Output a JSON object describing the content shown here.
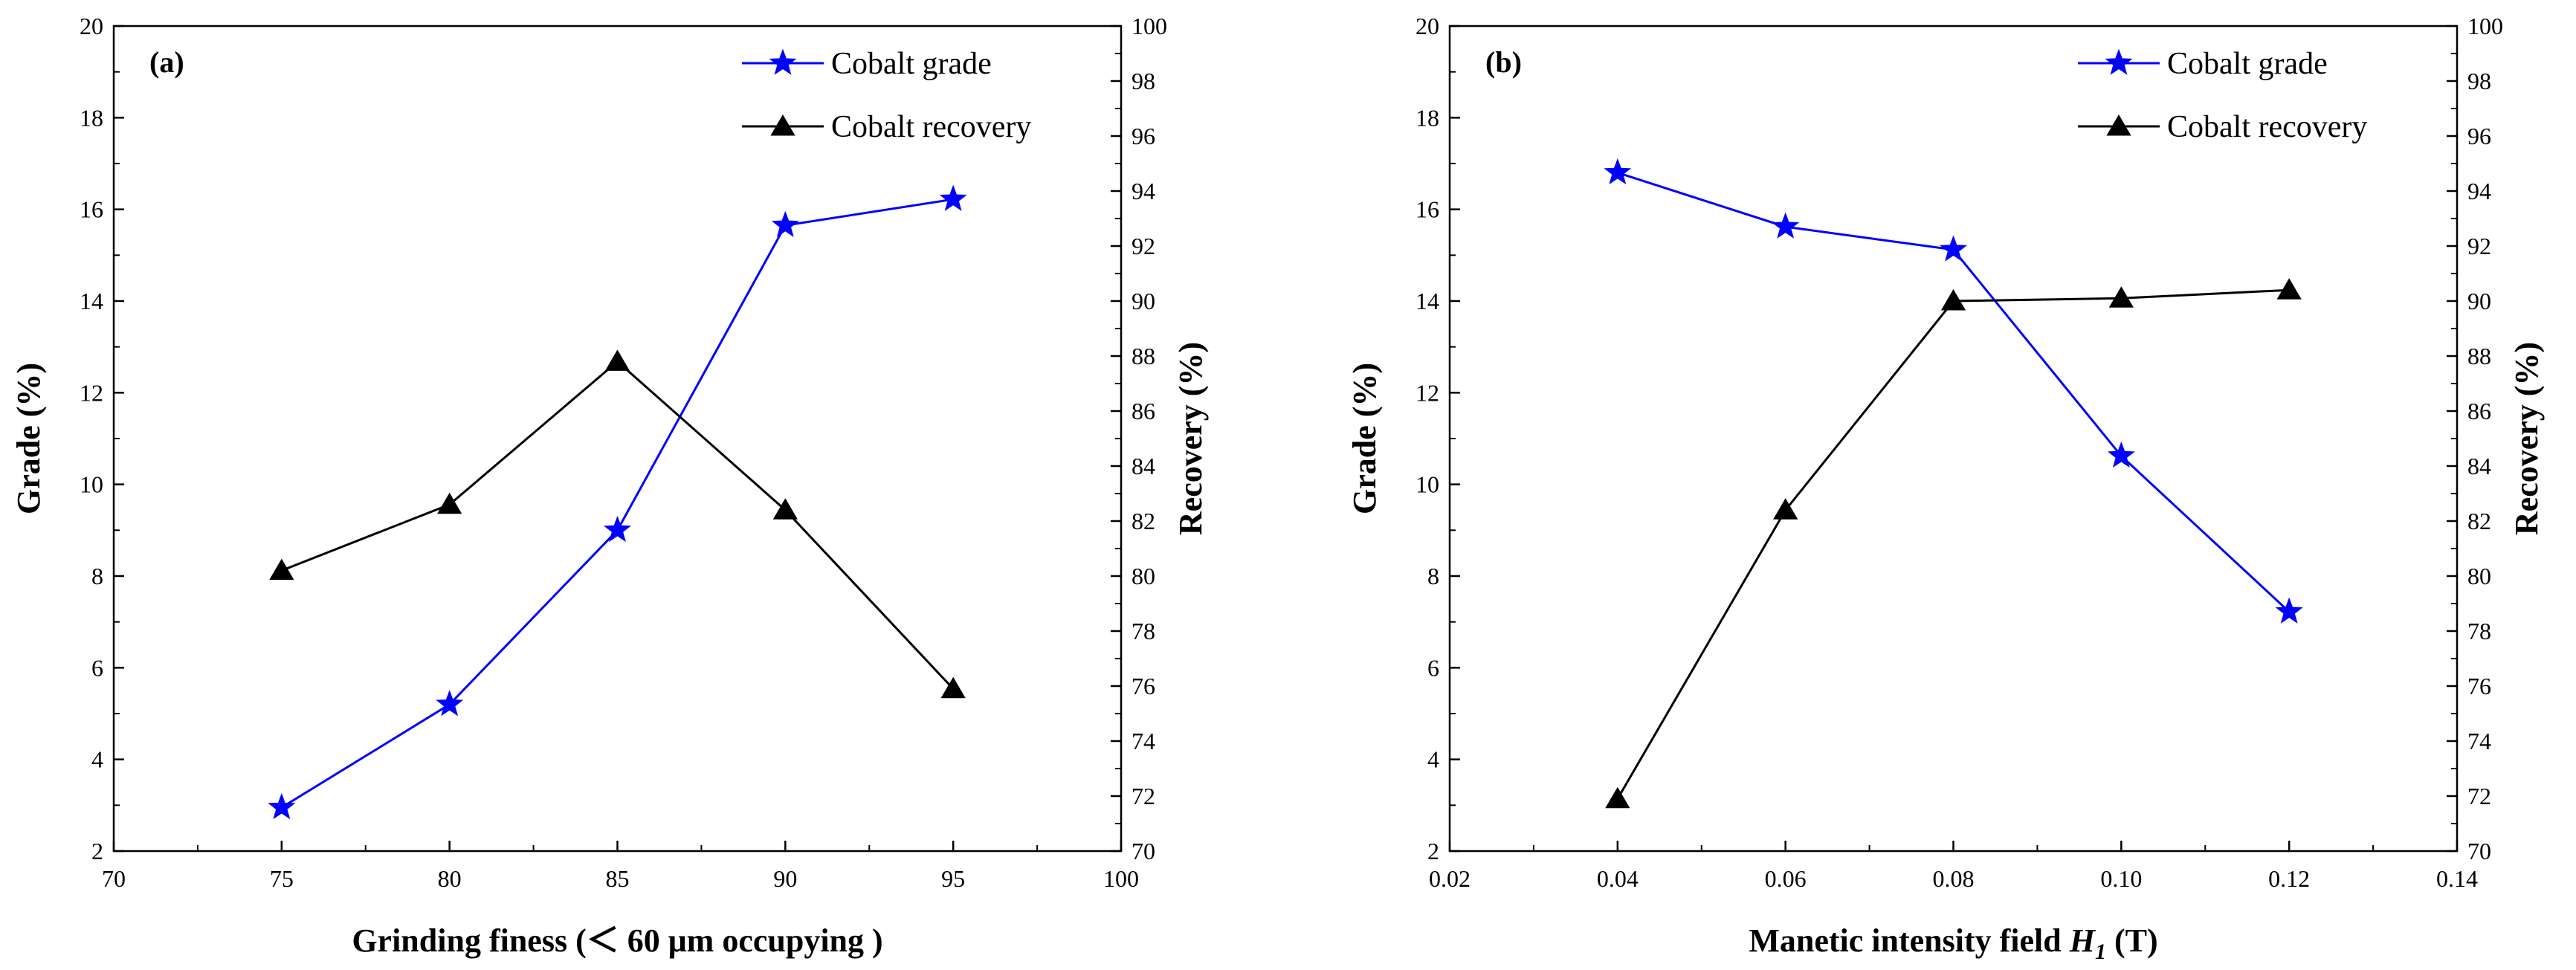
{
  "chart_data": [
    {
      "type": "line",
      "panel_label": "(a)",
      "xlabel": "Grinding finess (＜ 60 μm occupying )",
      "ylabel_left": "Grade (%)",
      "ylabel_right": "Recovery (%)",
      "xlim": [
        70,
        100
      ],
      "ylim_left": [
        2,
        20
      ],
      "ylim_right": [
        70,
        100
      ],
      "x_ticks": [
        "70",
        "75",
        "80",
        "85",
        "90",
        "95",
        "100"
      ],
      "y_left_ticks": [
        "2",
        "4",
        "6",
        "8",
        "10",
        "12",
        "14",
        "16",
        "18",
        "20"
      ],
      "y_right_ticks": [
        "70",
        "72",
        "74",
        "76",
        "78",
        "80",
        "82",
        "84",
        "86",
        "88",
        "90",
        "92",
        "94",
        "96",
        "98",
        "100"
      ],
      "legend_position": "top-right",
      "x": [
        75,
        80,
        85,
        90,
        95
      ],
      "series": [
        {
          "name": "Cobalt grade",
          "axis": "left",
          "marker": "star",
          "color": "#0000ff",
          "values": [
            2.95,
            5.2,
            9.0,
            15.65,
            16.22
          ]
        },
        {
          "name": "Cobalt recovery",
          "axis": "right",
          "marker": "triangle",
          "color": "#000000",
          "values": [
            80.2,
            82.6,
            87.8,
            82.4,
            75.9
          ]
        }
      ]
    },
    {
      "type": "line",
      "panel_label": "(b)",
      "xlabel_parts": [
        "Manetic intensity field ",
        "H",
        "1",
        " (T)"
      ],
      "ylabel_left": "Grade (%)",
      "ylabel_right": "Recovery (%)",
      "xlim": [
        0.02,
        0.14
      ],
      "ylim_left": [
        2,
        20
      ],
      "ylim_right": [
        70,
        100
      ],
      "x_ticks": [
        "0.02",
        "0.04",
        "0.06",
        "0.08",
        "0.10",
        "0.12",
        "0.14"
      ],
      "y_left_ticks": [
        "2",
        "4",
        "6",
        "8",
        "10",
        "12",
        "14",
        "16",
        "18",
        "20"
      ],
      "y_right_ticks": [
        "70",
        "72",
        "74",
        "76",
        "78",
        "80",
        "82",
        "84",
        "86",
        "88",
        "90",
        "92",
        "94",
        "96",
        "98",
        "100"
      ],
      "legend_position": "top-right",
      "x": [
        0.04,
        0.06,
        0.08,
        0.1,
        0.12
      ],
      "series": [
        {
          "name": "Cobalt grade",
          "axis": "left",
          "marker": "star",
          "color": "#0000ff",
          "values": [
            16.8,
            15.62,
            15.12,
            10.62,
            7.22
          ]
        },
        {
          "name": "Cobalt recovery",
          "axis": "right",
          "marker": "triangle",
          "color": "#000000",
          "values": [
            71.9,
            82.4,
            90.0,
            90.1,
            90.4
          ]
        }
      ]
    }
  ]
}
